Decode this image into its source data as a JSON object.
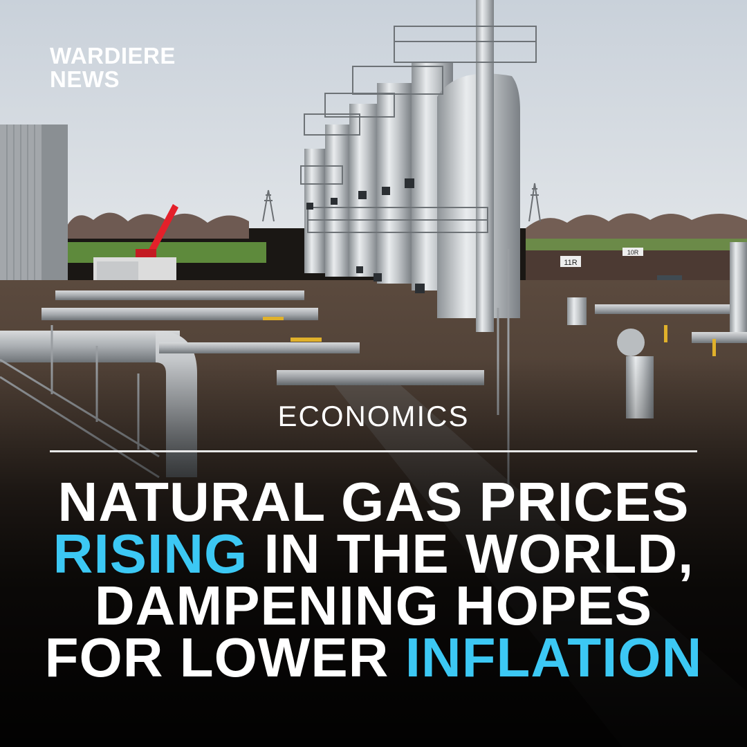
{
  "brand": {
    "line1": "WARDIERE",
    "line2": "NEWS"
  },
  "category": "ECONOMICS",
  "headline": {
    "line1": "NATURAL GAS PRICES",
    "line2_highlight": "RISING",
    "line2_rest": " IN THE WORLD,",
    "line3": "DAMPENING HOPES",
    "line4_start": "FOR LOWER ",
    "line4_highlight": "INFLATION"
  },
  "photo": {
    "container_label": "11R",
    "building_sign": "10R"
  },
  "colors": {
    "accent": "#3cc8f4",
    "text": "#ffffff",
    "crane": "#e4202a",
    "container": "#2f8fd2"
  }
}
